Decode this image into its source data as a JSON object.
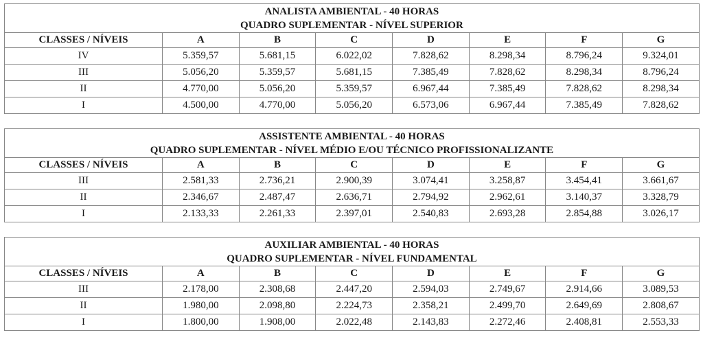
{
  "tables": [
    {
      "title_line1": "ANALISTA AMBIENTAL - 40 HORAS",
      "title_line2": "QUADRO SUPLEMENTAR - NÍVEL SUPERIOR",
      "header": [
        "CLASSES / NÍVEIS",
        "A",
        "B",
        "C",
        "D",
        "E",
        "F",
        "G"
      ],
      "rows": [
        {
          "label": "IV",
          "values": [
            "5.359,57",
            "5.681,15",
            "6.022,02",
            "7.828,62",
            "8.298,34",
            "8.796,24",
            "9.324,01"
          ]
        },
        {
          "label": "III",
          "values": [
            "5.056,20",
            "5.359,57",
            "5.681,15",
            "7.385,49",
            "7.828,62",
            "8.298,34",
            "8.796,24"
          ]
        },
        {
          "label": "II",
          "values": [
            "4.770,00",
            "5.056,20",
            "5.359,57",
            "6.967,44",
            "7.385,49",
            "7.828,62",
            "8.298,34"
          ]
        },
        {
          "label": "I",
          "values": [
            "4.500,00",
            "4.770,00",
            "5.056,20",
            "6.573,06",
            "6.967,44",
            "7.385,49",
            "7.828,62"
          ]
        }
      ]
    },
    {
      "title_line1": "ASSISTENTE AMBIENTAL - 40 HORAS",
      "title_line2": "QUADRO SUPLEMENTAR - NÍVEL MÉDIO E/OU TÉCNICO PROFISSIONALIZANTE",
      "header": [
        "CLASSES / NÍVEIS",
        "A",
        "B",
        "C",
        "D",
        "E",
        "F",
        "G"
      ],
      "rows": [
        {
          "label": "III",
          "values": [
            "2.581,33",
            "2.736,21",
            "2.900,39",
            "3.074,41",
            "3.258,87",
            "3.454,41",
            "3.661,67"
          ]
        },
        {
          "label": "II",
          "values": [
            "2.346,67",
            "2.487,47",
            "2.636,71",
            "2.794,92",
            "2.962,61",
            "3.140,37",
            "3.328,79"
          ]
        },
        {
          "label": "I",
          "values": [
            "2.133,33",
            "2.261,33",
            "2.397,01",
            "2.540,83",
            "2.693,28",
            "2.854,88",
            "3.026,17"
          ]
        }
      ]
    },
    {
      "title_line1": "AUXILIAR AMBIENTAL - 40 HORAS",
      "title_line2": "QUADRO SUPLEMENTAR - NÍVEL FUNDAMENTAL",
      "header": [
        "CLASSES / NÍVEIS",
        "A",
        "B",
        "C",
        "D",
        "E",
        "F",
        "G"
      ],
      "rows": [
        {
          "label": "III",
          "values": [
            "2.178,00",
            "2.308,68",
            "2.447,20",
            "2.594,03",
            "2.749,67",
            "2.914,66",
            "3.089,53"
          ]
        },
        {
          "label": "II",
          "values": [
            "1.980,00",
            "2.098,80",
            "2.224,73",
            "2.358,21",
            "2.499,70",
            "2.649,69",
            "2.808,67"
          ]
        },
        {
          "label": "I",
          "values": [
            "1.800,00",
            "1.908,00",
            "2.022,48",
            "2.143,83",
            "2.272,46",
            "2.408,81",
            "2.553,33"
          ]
        }
      ]
    }
  ],
  "colors": {
    "border": "#878787",
    "text": "#1a1a1a",
    "background": "#ffffff"
  }
}
